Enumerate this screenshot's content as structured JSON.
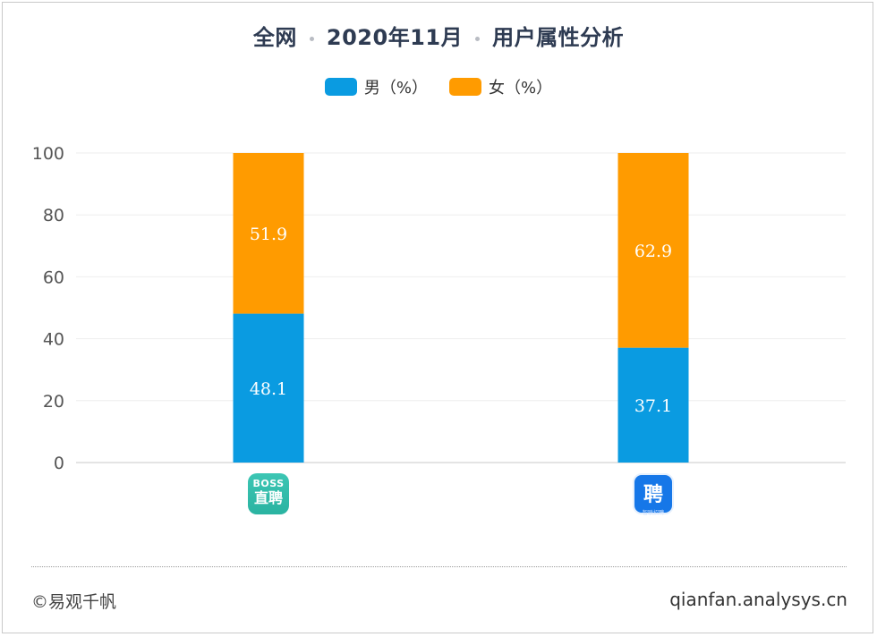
{
  "header": {
    "title_part1": "全网",
    "title_part2": "2020年11月",
    "title_part3": "用户属性分析"
  },
  "chart_data": {
    "type": "bar",
    "stacked": true,
    "categories": [
      "BOSS直聘",
      "智联招聘"
    ],
    "series": [
      {
        "name": "男（%）",
        "values": [
          48.1,
          37.1
        ],
        "color": "#0a9be1"
      },
      {
        "name": "女（%）",
        "values": [
          51.9,
          62.9
        ],
        "color": "#ff9b00"
      }
    ],
    "yticks": [
      "0",
      "20",
      "40",
      "60",
      "80",
      "100"
    ],
    "ylim": [
      0,
      100
    ],
    "grid": true,
    "legend_position": "top-center",
    "data_labels": true
  },
  "icons": {
    "cat1": {
      "name": "boss-zhipin-app-icon",
      "line1": "BOSS",
      "line2": "直聘"
    },
    "cat2": {
      "name": "zhilian-app-icon",
      "line1": "聘",
      "line2": "智联招聘"
    }
  },
  "footer": {
    "left": "©易观千帆",
    "right": "qianfan.analysys.cn"
  }
}
